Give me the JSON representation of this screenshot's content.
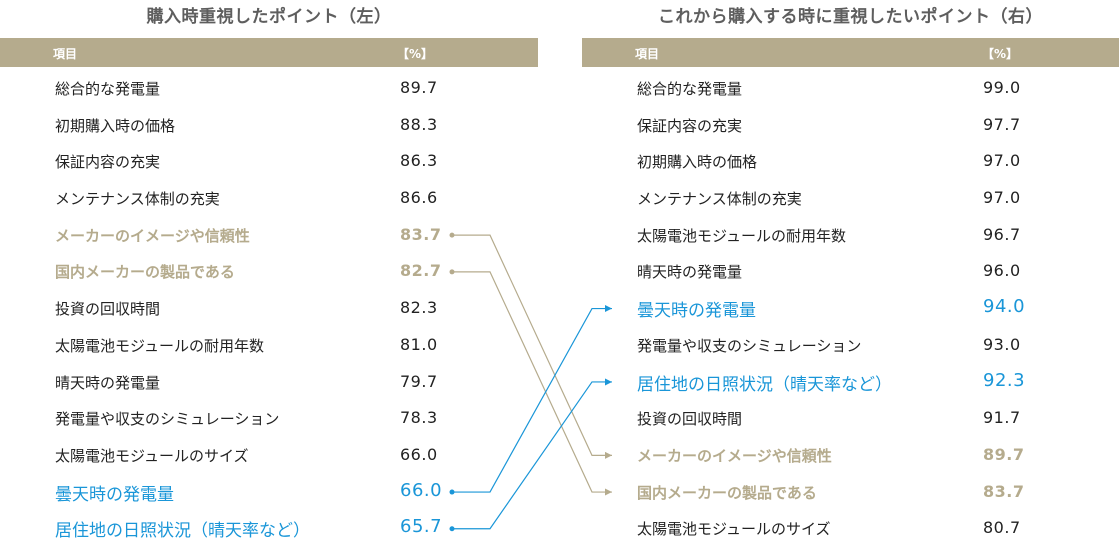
{
  "left": {
    "title": "購入時重視したポイント（左）",
    "header": {
      "item": "項目",
      "unit": "【%】"
    },
    "rows": [
      {
        "label": "総合的な発電量",
        "value": "89.7"
      },
      {
        "label": "初期購入時の価格",
        "value": "88.3"
      },
      {
        "label": "保証内容の充実",
        "value": "86.3"
      },
      {
        "label": "メンテナンス体制の充実",
        "value": "86.6"
      },
      {
        "label": "メーカーのイメージや信頼性",
        "value": "83.7"
      },
      {
        "label": "国内メーカーの製品である",
        "value": "82.7"
      },
      {
        "label": "投資の回収時間",
        "value": "82.3"
      },
      {
        "label": "太陽電池モジュールの耐用年数",
        "value": "81.0"
      },
      {
        "label": "晴天時の発電量",
        "value": "79.7"
      },
      {
        "label": "発電量や収支のシミュレーション",
        "value": "78.3"
      },
      {
        "label": "太陽電池モジュールのサイズ",
        "value": "66.0"
      },
      {
        "label": "曇天時の発電量",
        "value": "66.0"
      },
      {
        "label": "居住地の日照状況（晴天率など）",
        "value": "65.7"
      }
    ]
  },
  "right": {
    "title": "これから購入する時に重視したいポイント（右）",
    "header": {
      "item": "項目",
      "unit": "【%】"
    },
    "rows": [
      {
        "label": "総合的な発電量",
        "value": "99.0"
      },
      {
        "label": "保証内容の充実",
        "value": "97.7"
      },
      {
        "label": "初期購入時の価格",
        "value": "97.0"
      },
      {
        "label": "メンテナンス体制の充実",
        "value": "97.0"
      },
      {
        "label": "太陽電池モジュールの耐用年数",
        "value": "96.7"
      },
      {
        "label": "晴天時の発電量",
        "value": "96.0"
      },
      {
        "label": "曇天時の発電量",
        "value": "94.0"
      },
      {
        "label": "発電量や収支のシミュレーション",
        "value": "93.0"
      },
      {
        "label": "居住地の日照状況（晴天率など）",
        "value": "92.3"
      },
      {
        "label": "投資の回収時間",
        "value": "91.7"
      },
      {
        "label": "メーカーのイメージや信頼性",
        "value": "89.7"
      },
      {
        "label": "国内メーカーの製品である",
        "value": "83.7"
      },
      {
        "label": "太陽電池モジュールのサイズ",
        "value": "80.7"
      }
    ]
  },
  "chart_data": {
    "type": "table",
    "series": [
      {
        "name": "購入時重視したポイント（左）",
        "categories": [
          "総合的な発電量",
          "初期購入時の価格",
          "保証内容の充実",
          "メンテナンス体制の充実",
          "メーカーのイメージや信頼性",
          "国内メーカーの製品である",
          "投資の回収時間",
          "太陽電池モジュールの耐用年数",
          "晴天時の発電量",
          "発電量や収支のシミュレーション",
          "太陽電池モジュールのサイズ",
          "曇天時の発電量",
          "居住地の日照状況（晴天率など）"
        ],
        "values": [
          89.7,
          88.3,
          86.3,
          86.6,
          83.7,
          82.7,
          82.3,
          81.0,
          79.7,
          78.3,
          66.0,
          66.0,
          65.7
        ]
      },
      {
        "name": "これから購入する時に重視したいポイント（右）",
        "categories": [
          "総合的な発電量",
          "保証内容の充実",
          "初期購入時の価格",
          "メンテナンス体制の充実",
          "太陽電池モジュールの耐用年数",
          "晴天時の発電量",
          "曇天時の発電量",
          "発電量や収支のシミュレーション",
          "居住地の日照状況（晴天率など）",
          "投資の回収時間",
          "メーカーのイメージや信頼性",
          "国内メーカーの製品である",
          "太陽電池モジュールのサイズ"
        ],
        "values": [
          99.0,
          97.7,
          97.0,
          97.0,
          96.7,
          96.0,
          94.0,
          93.0,
          92.3,
          91.7,
          89.7,
          83.7,
          80.7
        ]
      }
    ],
    "highlighted_items": {
      "brand": [
        "メーカーのイメージや信頼性",
        "国内メーカーの製品である"
      ],
      "weather": [
        "曇天時の発電量",
        "居住地の日照状況（晴天率など）"
      ]
    }
  },
  "colors": {
    "header_bg": "#b5ab8d",
    "brand": "#b5ab8d",
    "weather": "#1a96d8",
    "text": "#222222",
    "title": "#5e5e5e"
  }
}
